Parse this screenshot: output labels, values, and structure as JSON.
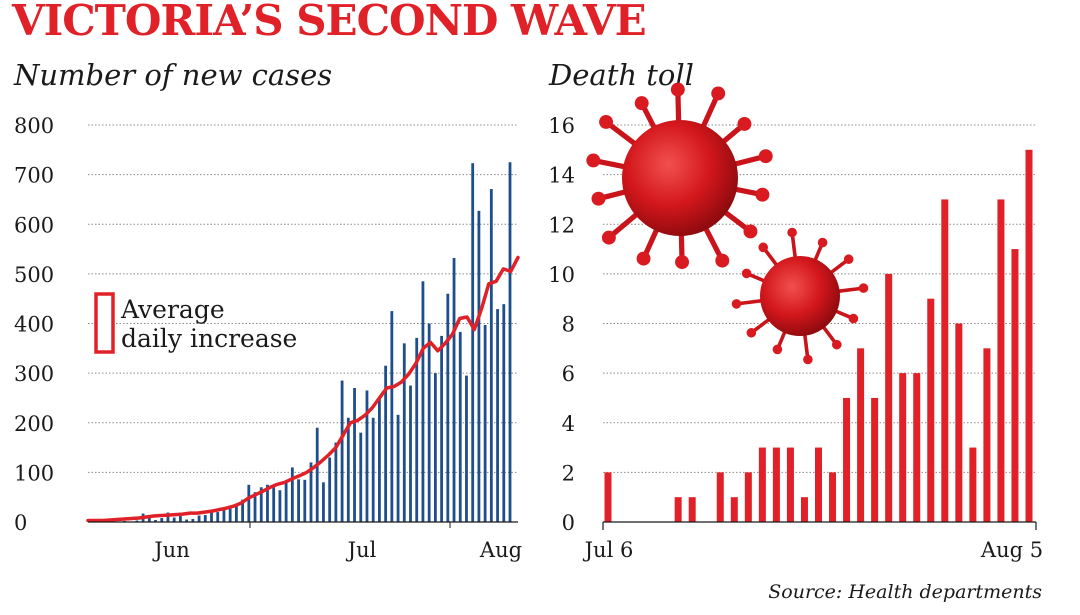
{
  "title": "VICTORIA’S SECOND WAVE",
  "source": "Source: Health departments",
  "chart_data": [
    {
      "type": "bar",
      "title": "Number of new cases",
      "ylim": [
        0,
        800
      ],
      "y_ticks": [
        "0",
        "100",
        "200",
        "300",
        "400",
        "500",
        "600",
        "700",
        "800"
      ],
      "x_ticks": [
        "Jun",
        "Jul",
        "Aug"
      ],
      "grid": true,
      "legend": {
        "position": "middle-left",
        "entries": [
          "Average",
          "daily increase"
        ]
      },
      "series": [
        {
          "name": "",
          "type": "bar",
          "color": "#1f4e8c",
          "values": [
            3,
            1,
            2,
            1,
            3,
            17,
            10,
            4,
            8,
            19,
            9,
            12,
            5,
            6,
            13,
            14,
            25,
            20,
            28,
            32,
            37,
            45,
            75,
            60,
            70,
            75,
            70,
            64,
            79,
            110,
            86,
            85,
            120,
            190,
            80,
            130,
            160,
            285,
            210,
            270,
            180,
            265,
            210,
            250,
            315,
            425,
            216,
            360,
            275,
            371,
            485,
            400,
            300,
            375,
            460,
            532,
            383,
            295,
            723,
            627,
            397,
            671,
            429,
            439,
            725
          ]
        },
        {
          "name": "Average daily increase",
          "type": "line",
          "color": "#e02128",
          "values": [
            3,
            3,
            3,
            4,
            5,
            6,
            7,
            8,
            10,
            12,
            13,
            14,
            15,
            16,
            18,
            18,
            20,
            22,
            25,
            28,
            32,
            38,
            48,
            55,
            62,
            70,
            76,
            80,
            87,
            93,
            100,
            110,
            122,
            135,
            150,
            175,
            200,
            205,
            215,
            230,
            250,
            270,
            273,
            282,
            298,
            320,
            350,
            362,
            345,
            360,
            378,
            410,
            413,
            388,
            430,
            480,
            485,
            510,
            505,
            533
          ]
        }
      ]
    },
    {
      "type": "bar",
      "title": "Death toll",
      "ylim": [
        0,
        16
      ],
      "y_ticks": [
        "0",
        "2",
        "4",
        "6",
        "8",
        "10",
        "12",
        "14",
        "16"
      ],
      "x_ticks": [
        "Jul 6",
        "Aug 5"
      ],
      "grid": true,
      "series": [
        {
          "name": "",
          "color": "#e02128",
          "values": [
            2,
            0,
            0,
            0,
            0,
            1,
            1,
            0,
            2,
            1,
            2,
            3,
            3,
            3,
            1,
            3,
            2,
            5,
            7,
            5,
            10,
            6,
            6,
            9,
            13,
            8,
            3,
            7,
            13,
            11,
            15
          ]
        }
      ]
    }
  ]
}
